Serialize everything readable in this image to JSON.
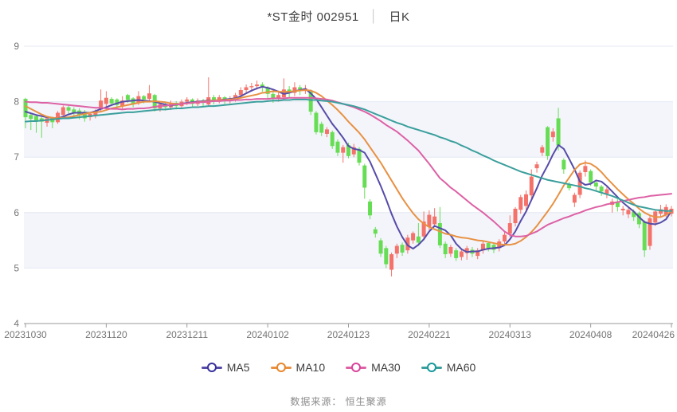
{
  "header": {
    "title_symbol": "*ST金时 002951",
    "title_separator": "│",
    "title_type": "日K"
  },
  "footer": {
    "source_label": "数据来源：",
    "source_value": "恒生聚源"
  },
  "chart_data": {
    "type": "candlestick",
    "title": "*ST金时 002951 日K",
    "y_axis": {
      "min": 4,
      "max": 9,
      "ticks": [
        9,
        8,
        7,
        6,
        5,
        4
      ]
    },
    "x_axis": {
      "tick_labels": [
        "20231030",
        "20231120",
        "20231211",
        "20240102",
        "20240123",
        "20240221",
        "20240313",
        "20240408",
        "20240426"
      ],
      "tick_interval": 15
    },
    "grid": true,
    "legend_position": "bottom",
    "colors": {
      "up": "#f4726a",
      "down": "#67dd55",
      "band": "#f3f5fb",
      "gridline": "#e4e9f2",
      "axis": "#9a9a9a",
      "axis_text": "#757575"
    },
    "candles_format": "[open, close, low, high]",
    "candles": [
      [
        8.05,
        7.72,
        7.52,
        8.07
      ],
      [
        7.76,
        7.69,
        7.49,
        7.78
      ],
      [
        7.74,
        7.66,
        7.44,
        7.76
      ],
      [
        7.7,
        7.64,
        7.35,
        7.72
      ],
      [
        7.62,
        7.7,
        7.55,
        7.73
      ],
      [
        7.7,
        7.63,
        7.52,
        7.72
      ],
      [
        7.63,
        7.8,
        7.6,
        7.83
      ],
      [
        7.76,
        7.9,
        7.72,
        7.93
      ],
      [
        7.9,
        7.84,
        7.76,
        7.94
      ],
      [
        7.86,
        7.8,
        7.7,
        7.9
      ],
      [
        7.84,
        7.76,
        7.68,
        7.88
      ],
      [
        7.82,
        7.7,
        7.64,
        7.85
      ],
      [
        7.72,
        7.78,
        7.66,
        7.82
      ],
      [
        7.76,
        7.82,
        7.7,
        7.86
      ],
      [
        7.86,
        8.02,
        7.82,
        8.22
      ],
      [
        7.96,
        8.07,
        7.9,
        8.19
      ],
      [
        8.05,
        7.97,
        7.92,
        8.08
      ],
      [
        8.04,
        7.94,
        7.88,
        8.06
      ],
      [
        7.92,
        8.02,
        7.86,
        8.1
      ],
      [
        8.12,
        8.03,
        7.98,
        8.14
      ],
      [
        8.06,
        7.95,
        7.9,
        8.08
      ],
      [
        7.98,
        8.1,
        7.94,
        8.19
      ],
      [
        8.1,
        8.04,
        7.97,
        8.12
      ],
      [
        8.05,
        8.15,
        8.0,
        8.3
      ],
      [
        8.12,
        7.88,
        7.82,
        8.14
      ],
      [
        7.88,
        7.95,
        7.82,
        8.0
      ],
      [
        7.95,
        7.9,
        7.84,
        7.99
      ],
      [
        7.9,
        7.98,
        7.85,
        8.02
      ],
      [
        7.98,
        7.92,
        7.86,
        8.01
      ],
      [
        7.92,
        8.0,
        7.88,
        8.04
      ],
      [
        8.0,
        8.04,
        7.94,
        8.08
      ],
      [
        8.04,
        7.96,
        7.9,
        8.06
      ],
      [
        7.96,
        8.02,
        7.92,
        8.06
      ],
      [
        8.02,
        7.98,
        7.92,
        8.05
      ],
      [
        7.95,
        8.08,
        7.92,
        8.44
      ],
      [
        8.08,
        8.02,
        7.95,
        8.12
      ],
      [
        8.02,
        8.08,
        7.97,
        8.12
      ],
      [
        8.08,
        8.03,
        7.96,
        8.1
      ],
      [
        8.03,
        8.05,
        7.97,
        8.1
      ],
      [
        8.05,
        8.12,
        8.0,
        8.16
      ],
      [
        8.12,
        8.21,
        8.06,
        8.26
      ],
      [
        8.21,
        8.26,
        8.14,
        8.31
      ],
      [
        8.26,
        8.28,
        8.18,
        8.34
      ],
      [
        8.28,
        8.31,
        8.22,
        8.38
      ],
      [
        8.31,
        8.26,
        8.18,
        8.35
      ],
      [
        8.26,
        8.14,
        8.05,
        8.28
      ],
      [
        8.14,
        8.06,
        7.98,
        8.18
      ],
      [
        8.06,
        8.12,
        8.0,
        8.2
      ],
      [
        8.08,
        8.22,
        8.04,
        8.42
      ],
      [
        8.22,
        8.16,
        8.08,
        8.28
      ],
      [
        8.16,
        8.26,
        8.1,
        8.35
      ],
      [
        8.26,
        8.22,
        8.12,
        8.3
      ],
      [
        8.22,
        8.24,
        8.14,
        8.3
      ],
      [
        8.18,
        7.82,
        7.76,
        8.22
      ],
      [
        7.8,
        7.45,
        7.41,
        7.83
      ],
      [
        7.6,
        7.44,
        7.38,
        7.64
      ],
      [
        7.42,
        7.5,
        7.36,
        7.54
      ],
      [
        7.45,
        7.2,
        7.15,
        7.48
      ],
      [
        7.28,
        7.08,
        7.02,
        7.32
      ],
      [
        7.08,
        7.18,
        6.9,
        7.22
      ],
      [
        7.22,
        7.02,
        6.98,
        7.26
      ],
      [
        7.05,
        7.18,
        7.0,
        7.24
      ],
      [
        7.15,
        6.9,
        6.85,
        7.18
      ],
      [
        6.85,
        6.45,
        6.25,
        6.88
      ],
      [
        6.2,
        5.95,
        5.88,
        6.24
      ],
      [
        5.7,
        5.62,
        5.55,
        5.74
      ],
      [
        5.5,
        5.26,
        5.2,
        5.54
      ],
      [
        5.36,
        5.07,
        5.0,
        5.4
      ],
      [
        4.97,
        5.25,
        4.85,
        5.28
      ],
      [
        5.26,
        5.4,
        5.18,
        5.44
      ],
      [
        5.42,
        5.28,
        5.22,
        5.46
      ],
      [
        5.32,
        5.55,
        5.26,
        5.6
      ],
      [
        5.5,
        5.63,
        5.44,
        5.66
      ],
      [
        5.57,
        5.46,
        5.4,
        5.81
      ],
      [
        5.57,
        5.84,
        5.5,
        6.02
      ],
      [
        5.74,
        5.96,
        5.68,
        6.04
      ],
      [
        5.79,
        5.93,
        5.74,
        6.08
      ],
      [
        5.81,
        5.41,
        5.36,
        6.1
      ],
      [
        5.44,
        5.25,
        5.18,
        5.48
      ],
      [
        5.26,
        5.38,
        5.2,
        5.42
      ],
      [
        5.32,
        5.18,
        5.13,
        5.36
      ],
      [
        5.2,
        5.3,
        5.14,
        5.34
      ],
      [
        5.27,
        5.36,
        5.15,
        5.4
      ],
      [
        5.33,
        5.26,
        5.2,
        5.38
      ],
      [
        5.22,
        5.32,
        5.16,
        5.36
      ],
      [
        5.32,
        5.44,
        5.26,
        5.48
      ],
      [
        5.45,
        5.36,
        5.3,
        5.48
      ],
      [
        5.42,
        5.33,
        5.27,
        5.45
      ],
      [
        5.36,
        5.48,
        5.3,
        5.52
      ],
      [
        5.48,
        5.6,
        5.42,
        5.66
      ],
      [
        5.62,
        5.81,
        5.56,
        5.95
      ],
      [
        5.81,
        6.07,
        5.75,
        6.1
      ],
      [
        6.05,
        6.28,
        5.98,
        6.32
      ],
      [
        6.12,
        6.33,
        6.05,
        6.4
      ],
      [
        6.31,
        6.65,
        6.25,
        6.78
      ],
      [
        6.8,
        6.87,
        6.72,
        6.92
      ],
      [
        7.08,
        7.18,
        7.02,
        7.22
      ],
      [
        7.54,
        7.02,
        6.95,
        7.56
      ],
      [
        7.36,
        7.46,
        7.28,
        7.52
      ],
      [
        7.7,
        7.21,
        7.12,
        7.89
      ],
      [
        6.95,
        6.78,
        6.7,
        6.98
      ],
      [
        6.5,
        6.44,
        6.4,
        6.55
      ],
      [
        6.18,
        6.32,
        6.1,
        6.36
      ],
      [
        6.32,
        6.72,
        6.26,
        6.76
      ],
      [
        6.73,
        6.84,
        6.65,
        6.94
      ],
      [
        6.75,
        6.54,
        6.48,
        6.78
      ],
      [
        6.54,
        6.47,
        6.4,
        6.58
      ],
      [
        6.47,
        6.38,
        6.3,
        6.5
      ],
      [
        6.34,
        6.42,
        6.26,
        6.46
      ],
      [
        6.14,
        6.2,
        6.0,
        6.25
      ],
      [
        6.2,
        6.1,
        6.02,
        6.24
      ],
      [
        6.04,
        6.07,
        5.95,
        6.12
      ],
      [
        5.97,
        6.05,
        5.9,
        6.09
      ],
      [
        6.02,
        5.92,
        5.85,
        6.06
      ],
      [
        5.99,
        5.79,
        5.72,
        6.02
      ],
      [
        5.84,
        5.32,
        5.2,
        5.86
      ],
      [
        5.4,
        5.9,
        5.33,
        5.94
      ],
      [
        5.82,
        6.02,
        5.76,
        6.06
      ],
      [
        5.98,
        6.06,
        5.92,
        6.14
      ],
      [
        5.96,
        6.1,
        5.92,
        6.15
      ],
      [
        5.98,
        6.07,
        5.93,
        6.12
      ]
    ],
    "series": [
      {
        "name": "MA5",
        "color": "#564ca8",
        "legend_color": "#36309b",
        "values": [
          7.82,
          7.79,
          7.76,
          7.74,
          7.72,
          7.71,
          7.7,
          7.73,
          7.77,
          7.8,
          7.8,
          7.8,
          7.8,
          7.83,
          7.87,
          7.9,
          7.94,
          7.97,
          8.0,
          8.01,
          8.02,
          8.03,
          8.02,
          8.01,
          8.0,
          7.97,
          7.95,
          7.93,
          7.95,
          7.96,
          7.98,
          7.99,
          8.0,
          8.01,
          8.02,
          8.02,
          8.03,
          8.04,
          8.05,
          8.06,
          8.1,
          8.15,
          8.2,
          8.24,
          8.27,
          8.25,
          8.22,
          8.18,
          8.14,
          8.16,
          8.19,
          8.21,
          8.23,
          8.15,
          8.05,
          7.9,
          7.75,
          7.6,
          7.48,
          7.35,
          7.2,
          7.15,
          7.13,
          7.08,
          6.92,
          6.7,
          6.48,
          6.24,
          5.98,
          5.75,
          5.56,
          5.41,
          5.35,
          5.42,
          5.52,
          5.66,
          5.76,
          5.72,
          5.68,
          5.59,
          5.44,
          5.34,
          5.29,
          5.3,
          5.3,
          5.33,
          5.35,
          5.36,
          5.37,
          5.41,
          5.52,
          5.66,
          5.85,
          6.02,
          6.23,
          6.44,
          6.67,
          6.85,
          7.05,
          7.22,
          7.15,
          6.97,
          6.78,
          6.56,
          6.5,
          6.52,
          6.58,
          6.56,
          6.48,
          6.38,
          6.28,
          6.18,
          6.1,
          6.02,
          5.92,
          5.83,
          5.8,
          5.79,
          5.82,
          5.88,
          6.03
        ]
      },
      {
        "name": "MA10",
        "color": "#e89143",
        "legend_color": "#e8862c",
        "values": [
          7.92,
          7.87,
          7.82,
          7.77,
          7.73,
          7.71,
          7.7,
          7.71,
          7.72,
          7.74,
          7.76,
          7.78,
          7.8,
          7.81,
          7.82,
          7.85,
          7.88,
          7.9,
          7.92,
          7.94,
          7.96,
          7.98,
          8.0,
          8.0,
          8.01,
          8.0,
          7.99,
          7.97,
          7.96,
          7.96,
          7.97,
          7.98,
          7.99,
          8.0,
          8.01,
          8.02,
          8.03,
          8.03,
          8.04,
          8.05,
          8.07,
          8.09,
          8.11,
          8.13,
          8.16,
          8.17,
          8.19,
          8.18,
          8.18,
          8.18,
          8.19,
          8.2,
          8.21,
          8.2,
          8.16,
          8.1,
          8.02,
          7.94,
          7.85,
          7.75,
          7.64,
          7.54,
          7.44,
          7.32,
          7.18,
          7.04,
          6.9,
          6.74,
          6.58,
          6.42,
          6.26,
          6.12,
          5.99,
          5.88,
          5.8,
          5.74,
          5.7,
          5.66,
          5.62,
          5.6,
          5.57,
          5.55,
          5.54,
          5.52,
          5.5,
          5.49,
          5.47,
          5.45,
          5.43,
          5.42,
          5.42,
          5.44,
          5.49,
          5.56,
          5.65,
          5.76,
          5.89,
          6.02,
          6.16,
          6.32,
          6.49,
          6.63,
          6.77,
          6.87,
          6.9,
          6.88,
          6.82,
          6.73,
          6.62,
          6.52,
          6.42,
          6.33,
          6.24,
          6.16,
          6.07,
          6.0,
          5.95,
          5.92,
          5.92,
          5.96,
          6.02
        ]
      },
      {
        "name": "MA30",
        "color": "#dd61a5",
        "legend_color": "#d8449a",
        "values": [
          8.0,
          7.99,
          7.99,
          7.98,
          7.98,
          7.97,
          7.96,
          7.95,
          7.94,
          7.93,
          7.92,
          7.91,
          7.9,
          7.89,
          7.89,
          7.88,
          7.87,
          7.87,
          7.86,
          7.87,
          7.87,
          7.88,
          7.88,
          7.89,
          7.91,
          7.92,
          7.93,
          7.94,
          7.95,
          7.96,
          7.97,
          7.98,
          7.99,
          7.99,
          8.0,
          8.01,
          8.01,
          8.02,
          8.02,
          8.03,
          8.03,
          8.04,
          8.04,
          8.05,
          8.05,
          8.05,
          8.06,
          8.06,
          8.06,
          8.07,
          8.07,
          8.07,
          8.07,
          8.07,
          8.06,
          8.05,
          8.04,
          8.02,
          7.99,
          7.96,
          7.93,
          7.9,
          7.86,
          7.82,
          7.77,
          7.71,
          7.65,
          7.58,
          7.52,
          7.46,
          7.38,
          7.3,
          7.21,
          7.12,
          7.0,
          6.88,
          6.75,
          6.62,
          6.54,
          6.45,
          6.38,
          6.3,
          6.22,
          6.14,
          6.07,
          6.0,
          5.92,
          5.84,
          5.75,
          5.66,
          5.6,
          5.57,
          5.57,
          5.58,
          5.62,
          5.66,
          5.72,
          5.78,
          5.82,
          5.86,
          5.9,
          5.93,
          5.97,
          6.0,
          6.04,
          6.07,
          6.1,
          6.12,
          6.15,
          6.17,
          6.19,
          6.21,
          6.23,
          6.25,
          6.27,
          6.28,
          6.3,
          6.31,
          6.32,
          6.33,
          6.34
        ]
      },
      {
        "name": "MA60",
        "color": "#3b9f9c",
        "legend_color": "#17999c",
        "values": [
          7.64,
          7.65,
          7.65,
          7.66,
          7.67,
          7.68,
          7.69,
          7.7,
          7.7,
          7.71,
          7.72,
          7.73,
          7.74,
          7.75,
          7.76,
          7.77,
          7.78,
          7.79,
          7.8,
          7.81,
          7.81,
          7.82,
          7.83,
          7.84,
          7.85,
          7.86,
          7.86,
          7.87,
          7.88,
          7.88,
          7.89,
          7.9,
          7.9,
          7.91,
          7.92,
          7.92,
          7.93,
          7.94,
          7.95,
          7.96,
          7.97,
          7.98,
          7.99,
          8.0,
          8.0,
          8.01,
          8.02,
          8.02,
          8.03,
          8.03,
          8.04,
          8.04,
          8.04,
          8.03,
          8.03,
          8.02,
          8.01,
          8.0,
          7.98,
          7.96,
          7.94,
          7.92,
          7.89,
          7.86,
          7.82,
          7.78,
          7.74,
          7.7,
          7.66,
          7.62,
          7.59,
          7.55,
          7.52,
          7.49,
          7.46,
          7.43,
          7.4,
          7.36,
          7.33,
          7.29,
          7.26,
          7.21,
          7.17,
          7.12,
          7.08,
          7.03,
          6.99,
          6.94,
          6.9,
          6.86,
          6.82,
          6.78,
          6.74,
          6.71,
          6.68,
          6.65,
          6.62,
          6.59,
          6.57,
          6.55,
          6.53,
          6.51,
          6.49,
          6.47,
          6.44,
          6.42,
          6.39,
          6.36,
          6.33,
          6.3,
          6.26,
          6.22,
          6.18,
          6.14,
          6.11,
          6.09,
          6.07,
          6.05,
          6.04,
          6.03,
          6.03
        ]
      }
    ]
  }
}
